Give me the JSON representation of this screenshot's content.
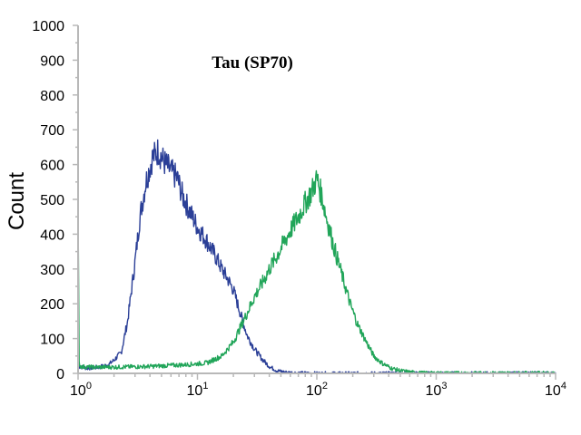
{
  "chart_data": {
    "type": "line",
    "title": "Tau (SP70)",
    "xlabel": "",
    "ylabel": "Count",
    "x_scale": "log",
    "xlim": [
      1,
      10000
    ],
    "ylim": [
      0,
      1000
    ],
    "x_ticks": [
      {
        "value": 1,
        "base": "10",
        "exponent": "0"
      },
      {
        "value": 10,
        "base": "10",
        "exponent": "1"
      },
      {
        "value": 100,
        "base": "10",
        "exponent": "2"
      },
      {
        "value": 1000,
        "base": "10",
        "exponent": "3"
      },
      {
        "value": 10000,
        "base": "10",
        "exponent": "4"
      }
    ],
    "y_ticks": [
      0,
      100,
      200,
      300,
      400,
      500,
      600,
      700,
      800,
      900,
      1000
    ],
    "grid": false,
    "legend": "none",
    "series": [
      {
        "color": "#2b3f97",
        "x": [
          1.0,
          1.2,
          1.5,
          1.8,
          2.0,
          2.3,
          2.6,
          3.0,
          3.3,
          3.7,
          4.2,
          4.7,
          5.2,
          6.0,
          6.8,
          7.5,
          8.5,
          10,
          12,
          14,
          16,
          18,
          20,
          23,
          26,
          30,
          35,
          40,
          46,
          55,
          70,
          100,
          300,
          1000,
          10000
        ],
        "y": [
          20,
          15,
          18,
          25,
          38,
          60,
          150,
          320,
          450,
          550,
          620,
          640,
          610,
          580,
          560,
          510,
          470,
          420,
          380,
          340,
          300,
          270,
          240,
          170,
          110,
          70,
          40,
          20,
          8,
          3,
          1,
          0,
          0,
          0,
          0
        ]
      },
      {
        "color": "#21a559",
        "x": [
          1.0,
          1.02,
          1.05,
          1.2,
          2.0,
          4.0,
          8.0,
          12,
          16,
          20,
          25,
          30,
          35,
          40,
          45,
          50,
          60,
          70,
          80,
          90,
          100,
          110,
          120,
          140,
          160,
          190,
          220,
          260,
          300,
          350,
          420,
          500,
          600,
          700,
          1000,
          10000
        ],
        "y": [
          470,
          30,
          20,
          18,
          18,
          20,
          25,
          30,
          50,
          90,
          160,
          220,
          260,
          300,
          330,
          360,
          410,
          450,
          490,
          520,
          560,
          510,
          450,
          360,
          290,
          200,
          140,
          90,
          50,
          30,
          15,
          8,
          4,
          2,
          1,
          1
        ]
      }
    ]
  }
}
